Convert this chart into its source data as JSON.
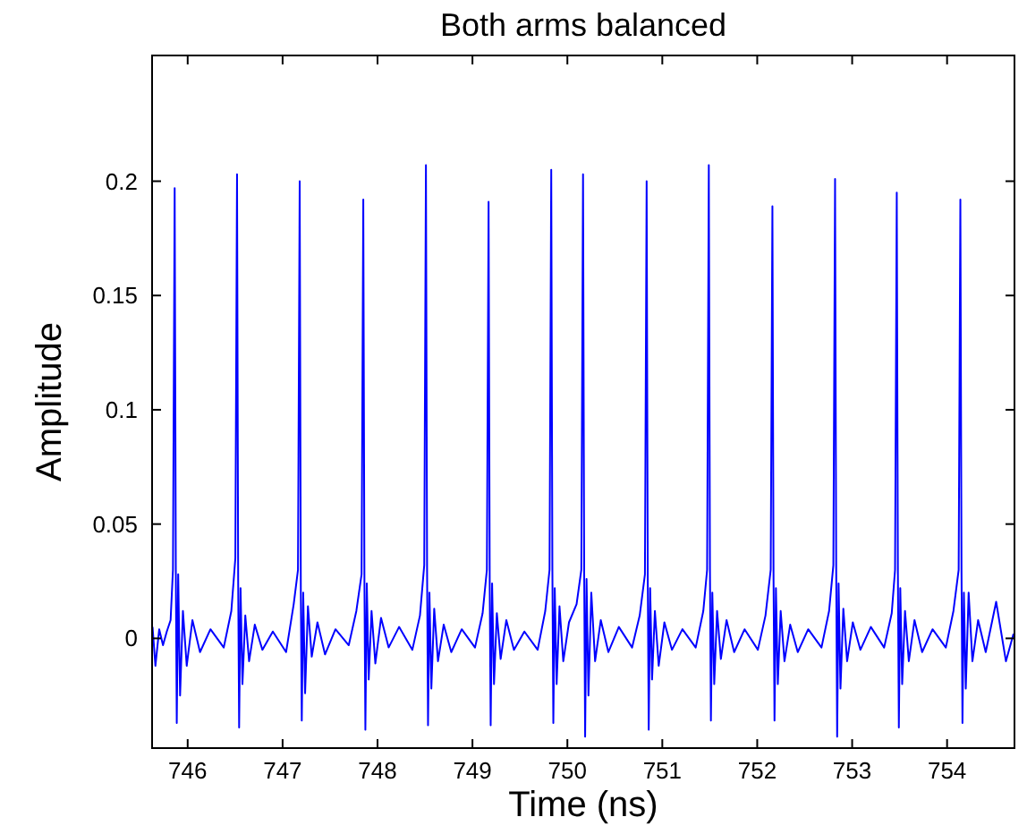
{
  "chart_data": {
    "type": "line",
    "title": "Both arms balanced",
    "xlabel": "Time (ns)",
    "ylabel": "Amplitude",
    "xlim": [
      745.625,
      754.71
    ],
    "ylim": [
      -0.048,
      0.255
    ],
    "xticks": [
      746,
      747,
      748,
      749,
      750,
      751,
      752,
      753,
      754
    ],
    "yticks": [
      0,
      0.05,
      0.1,
      0.15,
      0.2
    ],
    "grid": false,
    "marker": "none",
    "line_style": "solid",
    "series": [
      {
        "color": "#0000ff",
        "x": [
          745.63,
          745.66,
          745.7,
          745.74,
          745.78,
          745.82,
          745.845,
          745.863,
          745.875,
          745.885,
          745.9,
          745.92,
          745.95,
          745.99,
          746.05,
          746.13,
          746.24,
          746.38,
          746.46,
          746.502,
          746.52,
          746.532,
          746.542,
          746.557,
          746.577,
          746.607,
          746.647,
          746.707,
          746.787,
          746.897,
          747.037,
          747.117,
          747.162,
          747.18,
          747.192,
          747.202,
          747.217,
          747.237,
          747.267,
          747.307,
          747.367,
          747.447,
          747.557,
          747.697,
          747.777,
          747.832,
          747.85,
          747.862,
          747.872,
          747.887,
          747.907,
          747.937,
          747.977,
          748.037,
          748.117,
          748.227,
          748.367,
          748.447,
          748.492,
          748.51,
          748.522,
          748.532,
          748.547,
          748.567,
          748.597,
          748.637,
          748.697,
          748.777,
          748.887,
          749.027,
          749.107,
          749.152,
          749.17,
          749.182,
          749.192,
          749.207,
          749.227,
          749.257,
          749.297,
          749.357,
          749.437,
          749.547,
          749.687,
          749.767,
          749.812,
          749.83,
          749.842,
          749.852,
          749.867,
          749.887,
          749.917,
          749.957,
          750.017,
          750.097,
          750.147,
          750.165,
          750.177,
          750.187,
          750.202,
          750.222,
          750.252,
          750.292,
          750.352,
          750.432,
          750.542,
          750.682,
          750.762,
          750.817,
          750.835,
          750.847,
          750.857,
          750.872,
          750.892,
          750.922,
          750.962,
          751.022,
          751.102,
          751.212,
          751.352,
          751.432,
          751.472,
          751.49,
          751.502,
          751.512,
          751.527,
          751.547,
          751.577,
          751.617,
          751.677,
          751.757,
          751.867,
          752.007,
          752.087,
          752.142,
          752.16,
          752.172,
          752.182,
          752.197,
          752.217,
          752.247,
          752.287,
          752.347,
          752.427,
          752.537,
          752.677,
          752.757,
          752.802,
          752.82,
          752.832,
          752.842,
          752.857,
          752.877,
          752.907,
          752.947,
          753.007,
          753.087,
          753.197,
          753.337,
          753.417,
          753.452,
          753.47,
          753.482,
          753.492,
          753.507,
          753.527,
          753.557,
          753.597,
          753.657,
          753.737,
          753.847,
          753.987,
          754.067,
          754.122,
          754.14,
          754.152,
          754.162,
          754.177,
          754.197,
          754.227,
          754.267,
          754.327,
          754.407,
          754.517,
          754.62,
          754.7
        ],
        "values": [
          0.005,
          -0.012,
          0.004,
          -0.003,
          0.003,
          0.008,
          0.03,
          0.197,
          0.03,
          -0.037,
          0.028,
          -0.025,
          0.012,
          -0.012,
          0.008,
          -0.006,
          0.004,
          -0.004,
          0.012,
          0.035,
          0.203,
          0.025,
          -0.039,
          0.022,
          -0.02,
          0.01,
          -0.01,
          0.006,
          -0.005,
          0.003,
          -0.006,
          0.015,
          0.03,
          0.2,
          0.02,
          -0.036,
          0.02,
          -0.024,
          0.014,
          -0.008,
          0.007,
          -0.007,
          0.004,
          -0.003,
          0.012,
          0.028,
          0.192,
          0.025,
          -0.04,
          0.024,
          -0.018,
          0.012,
          -0.011,
          0.009,
          -0.004,
          0.005,
          -0.005,
          0.01,
          0.032,
          0.207,
          0.03,
          -0.038,
          0.02,
          -0.022,
          0.013,
          -0.01,
          0.006,
          -0.006,
          0.004,
          -0.004,
          0.011,
          0.03,
          0.191,
          0.022,
          -0.038,
          0.024,
          -0.02,
          0.011,
          -0.009,
          0.008,
          -0.005,
          0.003,
          -0.005,
          0.012,
          0.03,
          0.205,
          0.03,
          -0.037,
          0.022,
          -0.02,
          0.014,
          -0.01,
          0.007,
          0.015,
          0.03,
          0.203,
          0.028,
          -0.043,
          0.026,
          -0.025,
          0.02,
          -0.01,
          0.008,
          -0.006,
          0.005,
          -0.004,
          0.01,
          0.028,
          0.2,
          0.025,
          -0.04,
          0.022,
          -0.018,
          0.012,
          -0.012,
          0.007,
          -0.005,
          0.004,
          -0.004,
          0.012,
          0.03,
          0.207,
          0.03,
          -0.036,
          0.02,
          -0.02,
          0.012,
          -0.009,
          0.008,
          -0.006,
          0.004,
          -0.005,
          0.01,
          0.03,
          0.189,
          0.025,
          -0.036,
          0.022,
          -0.02,
          0.012,
          -0.01,
          0.006,
          -0.006,
          0.004,
          -0.004,
          0.012,
          0.032,
          0.201,
          0.03,
          -0.043,
          0.024,
          -0.022,
          0.013,
          -0.01,
          0.007,
          -0.005,
          0.005,
          -0.004,
          0.011,
          0.03,
          0.195,
          0.028,
          -0.039,
          0.022,
          -0.02,
          0.012,
          -0.01,
          0.008,
          -0.006,
          0.004,
          -0.004,
          0.012,
          0.03,
          0.192,
          0.03,
          -0.037,
          0.02,
          -0.022,
          0.02,
          -0.01,
          0.008,
          -0.006,
          0.016,
          -0.01,
          0.002
        ]
      }
    ]
  }
}
